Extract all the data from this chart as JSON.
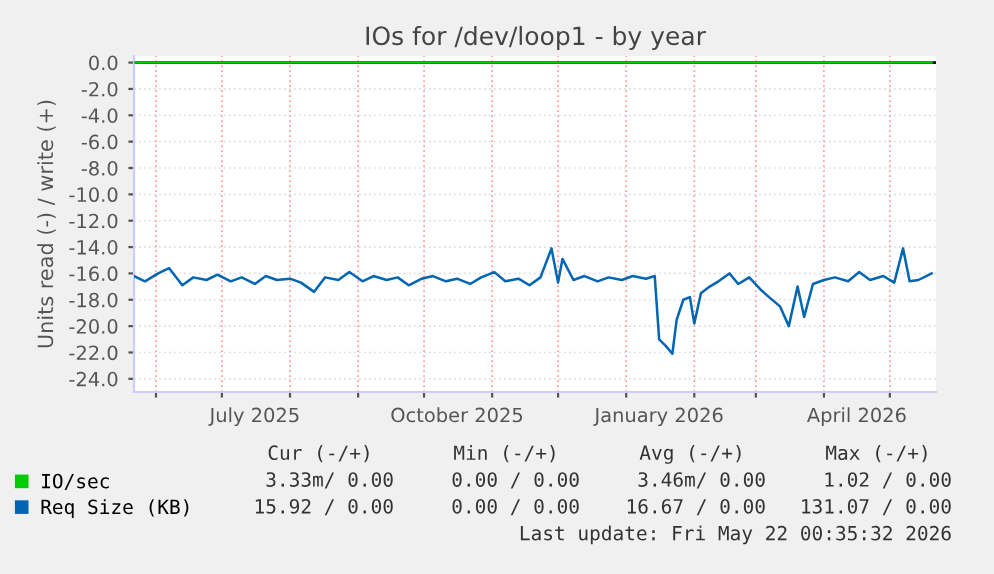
{
  "chart_data": {
    "type": "line",
    "title": "IOs for /dev/loop1 - by year",
    "ylabel": "Units read (-) / write (+)",
    "xlim": [
      "2025-05-22",
      "2026-05-22"
    ],
    "xticks": [
      {
        "value": "2025-06-01",
        "label": null
      },
      {
        "value": "2025-07-01",
        "label": null
      },
      {
        "value": "2025-08-01",
        "label": null
      },
      {
        "value": "2025-09-01",
        "label": null
      },
      {
        "value": "2025-10-01",
        "label": null
      },
      {
        "value": "2025-11-01",
        "label": null
      },
      {
        "value": "2025-12-01",
        "label": null
      },
      {
        "value": "2026-01-01",
        "label": null
      },
      {
        "value": "2026-02-01",
        "label": null
      },
      {
        "value": "2026-03-01",
        "label": null
      },
      {
        "value": "2026-04-01",
        "label": null
      },
      {
        "value": "2026-05-01",
        "label": null
      },
      {
        "value": "2025-07-16",
        "label": "July 2025"
      },
      {
        "value": "2025-10-16",
        "label": "October 2025"
      },
      {
        "value": "2026-01-16",
        "label": "January 2026"
      },
      {
        "value": "2026-04-16",
        "label": "April 2026"
      }
    ],
    "ylim": [
      -25,
      0.5
    ],
    "yticks": [
      {
        "value": 0,
        "label": "0.0"
      },
      {
        "value": -2,
        "label": "-2.0"
      },
      {
        "value": -4,
        "label": "-4.0"
      },
      {
        "value": -6,
        "label": "-6.0"
      },
      {
        "value": -8,
        "label": "-8.0"
      },
      {
        "value": -10,
        "label": "-10.0"
      },
      {
        "value": -12,
        "label": "-12.0"
      },
      {
        "value": -14,
        "label": "-14.0"
      },
      {
        "value": -16,
        "label": "-16.0"
      },
      {
        "value": -18,
        "label": "-18.0"
      },
      {
        "value": -20,
        "label": "-20.0"
      },
      {
        "value": -22,
        "label": "-22.0"
      },
      {
        "value": -24,
        "label": "-24.0"
      }
    ],
    "grid": true,
    "legend": "bottom left",
    "ref_lines": [
      {
        "axis": "y",
        "value": 0,
        "color": "#000000"
      }
    ],
    "series": [
      {
        "name": "IO/sec",
        "color": "#00cc00",
        "x": [
          "2025-05-22",
          "2026-05-20"
        ],
        "values": [
          0,
          0
        ]
      },
      {
        "name": "Req Size (KB)",
        "color": "#0066b3",
        "x": [
          "2025-05-22",
          "2025-05-27",
          "2025-06-02",
          "2025-06-07",
          "2025-06-13",
          "2025-06-18",
          "2025-06-24",
          "2025-06-29",
          "2025-07-05",
          "2025-07-10",
          "2025-07-16",
          "2025-07-21",
          "2025-07-26",
          "2025-08-01",
          "2025-08-06",
          "2025-08-12",
          "2025-08-17",
          "2025-08-23",
          "2025-08-28",
          "2025-09-03",
          "2025-09-08",
          "2025-09-14",
          "2025-09-19",
          "2025-09-24",
          "2025-09-30",
          "2025-10-05",
          "2025-10-11",
          "2025-10-16",
          "2025-10-22",
          "2025-10-27",
          "2025-11-02",
          "2025-11-07",
          "2025-11-13",
          "2025-11-18",
          "2025-11-23",
          "2025-11-28",
          "2025-12-01",
          "2025-12-03",
          "2025-12-08",
          "2025-12-13",
          "2025-12-19",
          "2025-12-24",
          "2025-12-30",
          "2026-01-04",
          "2026-01-10",
          "2026-01-14",
          "2026-01-16",
          "2026-01-19",
          "2026-01-22",
          "2026-01-24",
          "2026-01-27",
          "2026-01-30",
          "2026-02-01",
          "2026-02-04",
          "2026-02-08",
          "2026-02-12",
          "2026-02-17",
          "2026-02-21",
          "2026-02-26",
          "2026-03-03",
          "2026-03-07",
          "2026-03-12",
          "2026-03-16",
          "2026-03-20",
          "2026-03-23",
          "2026-03-27",
          "2026-04-01",
          "2026-04-06",
          "2026-04-12",
          "2026-04-17",
          "2026-04-22",
          "2026-04-28",
          "2026-05-03",
          "2026-05-07",
          "2026-05-10",
          "2026-05-14",
          "2026-05-20"
        ],
        "values": [
          -16.2,
          -16.6,
          -16.0,
          -15.6,
          -16.9,
          -16.3,
          -16.5,
          -16.1,
          -16.6,
          -16.3,
          -16.8,
          -16.2,
          -16.5,
          -16.4,
          -16.7,
          -17.4,
          -16.3,
          -16.5,
          -15.9,
          -16.6,
          -16.2,
          -16.5,
          -16.3,
          -16.9,
          -16.4,
          -16.2,
          -16.6,
          -16.4,
          -16.8,
          -16.3,
          -15.9,
          -16.6,
          -16.4,
          -16.9,
          -16.3,
          -14.1,
          -16.7,
          -14.9,
          -16.5,
          -16.2,
          -16.6,
          -16.3,
          -16.5,
          -16.2,
          -16.4,
          -16.2,
          -21.0,
          -21.5,
          -22.1,
          -19.5,
          -18.0,
          -17.8,
          -19.8,
          -17.5,
          -17.0,
          -16.6,
          -16.0,
          -16.8,
          -16.3,
          -17.2,
          -17.8,
          -18.5,
          -20.0,
          -17.0,
          -19.3,
          -16.8,
          -16.5,
          -16.3,
          -16.6,
          -15.9,
          -16.5,
          -16.2,
          -16.7,
          -14.1,
          -16.6,
          -16.5,
          -16.0
        ]
      }
    ],
    "annotations": [
      "Cur (-/+)",
      "Min (-/+)",
      "Avg (-/+)",
      "Max (-/+)",
      "3.33m/ 0.00",
      "0.00 / 0.00",
      "3.46m/ 0.00",
      "1.02 / 0.00",
      "15.92 / 0.00",
      "0.00 / 0.00",
      "16.67 / 0.00",
      "131.07 / 0.00",
      "Last update: Fri May 22 00:35:32 2026"
    ]
  }
}
